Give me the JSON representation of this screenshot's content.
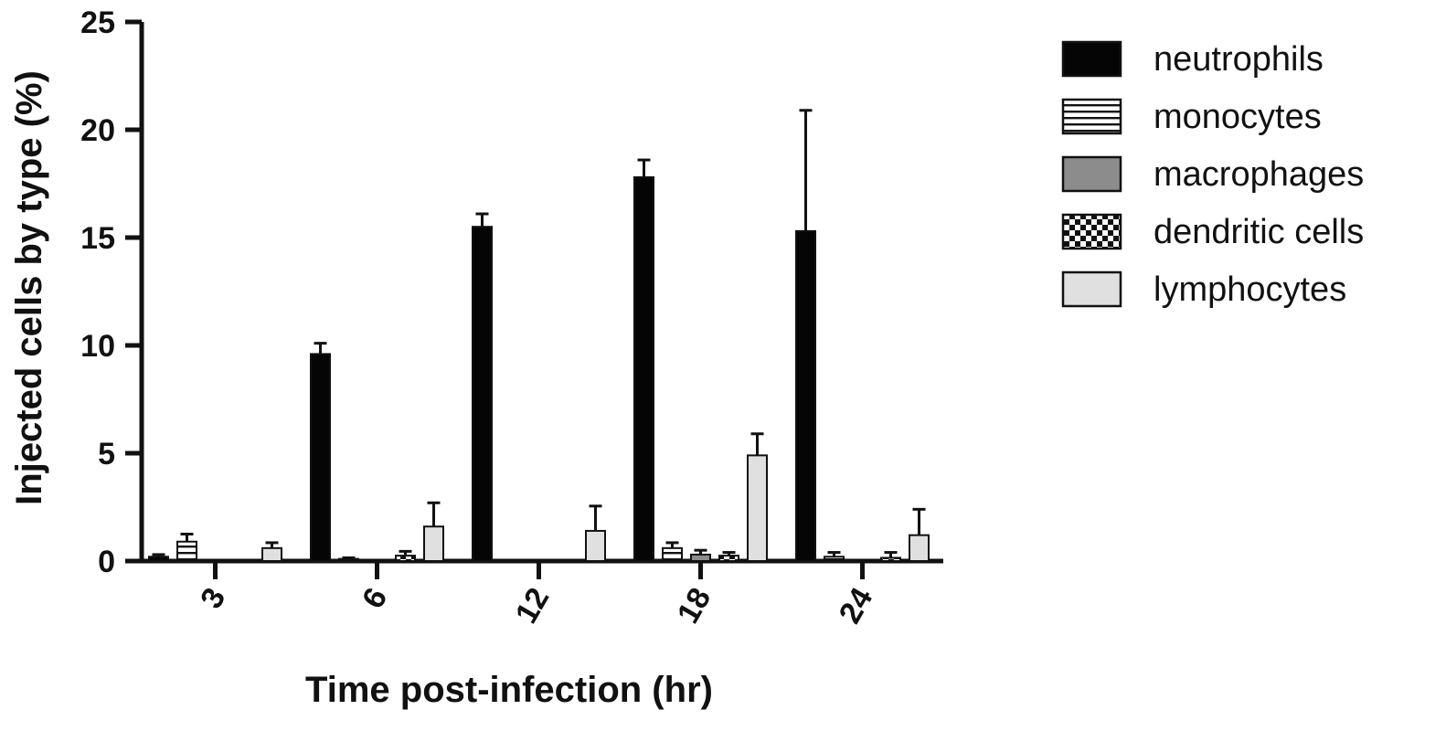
{
  "chart_data": {
    "type": "bar",
    "title": "",
    "xlabel": "Time post-infection (hr)",
    "ylabel": "Injected cells by type (%)",
    "ylim": [
      0,
      25
    ],
    "yticks": [
      "0",
      "5",
      "10",
      "15",
      "20",
      "25"
    ],
    "categories": [
      "3",
      "6",
      "12",
      "18",
      "24"
    ],
    "grid": false,
    "legend_position": "top-right",
    "error_bars": "upper",
    "series": [
      {
        "name": "neutrophils",
        "pattern": "solid-black",
        "values": [
          0.2,
          9.6,
          15.5,
          17.8,
          15.3
        ],
        "errors": [
          0.1,
          0.5,
          0.6,
          0.8,
          5.6
        ]
      },
      {
        "name": "monocytes",
        "pattern": "horizontal-stripes",
        "values": [
          0.9,
          0.1,
          0.0,
          0.6,
          0.2
        ],
        "errors": [
          0.35,
          0.05,
          0.0,
          0.25,
          0.2
        ]
      },
      {
        "name": "macrophages",
        "pattern": "solid-gray",
        "values": [
          0.0,
          0.0,
          0.0,
          0.3,
          0.0
        ],
        "errors": [
          0.0,
          0.0,
          0.0,
          0.2,
          0.0
        ]
      },
      {
        "name": "dendritic cells",
        "pattern": "checker",
        "values": [
          0.0,
          0.25,
          0.0,
          0.25,
          0.15
        ],
        "errors": [
          0.0,
          0.2,
          0.0,
          0.15,
          0.25
        ]
      },
      {
        "name": "lymphocytes",
        "pattern": "light-gray",
        "values": [
          0.6,
          1.6,
          1.4,
          4.9,
          1.2
        ],
        "errors": [
          0.25,
          1.1,
          1.15,
          1.0,
          1.2
        ]
      }
    ],
    "colors": {
      "axis": "#111111",
      "black_fill": "#050505",
      "gray_fill": "#8c8c8c",
      "light_fill": "#e0e0e0",
      "stripe_line": "#111111"
    }
  }
}
